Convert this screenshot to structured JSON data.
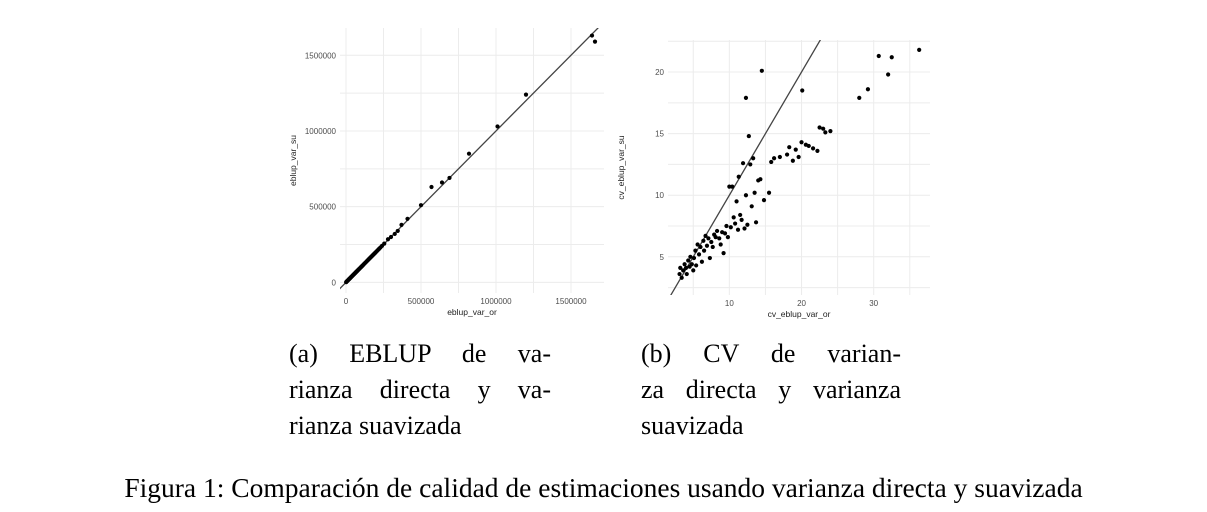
{
  "chart_data": [
    {
      "type": "scatter",
      "panel": "a",
      "title": "",
      "xlabel": "eblup_var_or",
      "ylabel": "eblup_var_su",
      "xlim": [
        -40000,
        1720000
      ],
      "ylim": [
        -70000,
        1680000
      ],
      "xticks": [
        0,
        500000,
        1000000,
        1500000
      ],
      "yticks": [
        0,
        500000,
        1000000,
        1500000
      ],
      "xtick_labels": [
        "0",
        "500000",
        "1000000",
        "1500000"
      ],
      "ytick_labels": [
        "0",
        "500000",
        "1000000",
        "1500000"
      ],
      "grid": true,
      "reference_line": {
        "type": "identity"
      },
      "points": [
        [
          1000,
          1500
        ],
        [
          3000,
          4000
        ],
        [
          5000,
          6000
        ],
        [
          8000,
          9000
        ],
        [
          10000,
          11000
        ],
        [
          12000,
          13000
        ],
        [
          15000,
          16000
        ],
        [
          18000,
          19000
        ],
        [
          20000,
          21000
        ],
        [
          22000,
          23000
        ],
        [
          25000,
          26000
        ],
        [
          28000,
          29000
        ],
        [
          30000,
          31000
        ],
        [
          33000,
          34000
        ],
        [
          36000,
          37000
        ],
        [
          40000,
          41000
        ],
        [
          43000,
          44000
        ],
        [
          46000,
          47000
        ],
        [
          50000,
          51000
        ],
        [
          53000,
          54000
        ],
        [
          56000,
          57000
        ],
        [
          60000,
          61000
        ],
        [
          63000,
          64000
        ],
        [
          66000,
          67000
        ],
        [
          70000,
          71000
        ],
        [
          73000,
          74000
        ],
        [
          76000,
          77000
        ],
        [
          80000,
          81000
        ],
        [
          85000,
          86000
        ],
        [
          90000,
          91000
        ],
        [
          95000,
          96000
        ],
        [
          100000,
          101000
        ],
        [
          105000,
          106000
        ],
        [
          110000,
          111000
        ],
        [
          115000,
          116000
        ],
        [
          120000,
          121000
        ],
        [
          125000,
          126000
        ],
        [
          130000,
          131000
        ],
        [
          135000,
          136000
        ],
        [
          140000,
          141000
        ],
        [
          145000,
          146000
        ],
        [
          150000,
          151000
        ],
        [
          155000,
          156000
        ],
        [
          160000,
          161000
        ],
        [
          165000,
          166000
        ],
        [
          170000,
          171000
        ],
        [
          175000,
          176000
        ],
        [
          180000,
          181000
        ],
        [
          185000,
          186000
        ],
        [
          190000,
          191000
        ],
        [
          195000,
          196000
        ],
        [
          200000,
          201000
        ],
        [
          208000,
          209000
        ],
        [
          215000,
          216000
        ],
        [
          222000,
          223000
        ],
        [
          230000,
          231000
        ],
        [
          240000,
          241000
        ],
        [
          255000,
          256000
        ],
        [
          280000,
          285000
        ],
        [
          300000,
          300000
        ],
        [
          325000,
          320000
        ],
        [
          345000,
          340000
        ],
        [
          370000,
          380000
        ],
        [
          410000,
          420000
        ],
        [
          500000,
          510000
        ],
        [
          570000,
          630000
        ],
        [
          640000,
          660000
        ],
        [
          690000,
          690000
        ],
        [
          820000,
          850000
        ],
        [
          1010000,
          1030000
        ],
        [
          1200000,
          1240000
        ],
        [
          1640000,
          1630000
        ],
        [
          1660000,
          1590000
        ]
      ]
    },
    {
      "type": "scatter",
      "panel": "b",
      "title": "",
      "xlabel": "cv_eblup_var_or",
      "ylabel": "cv_eblup_var_su",
      "xlim": [
        1.5,
        37.8
      ],
      "ylim": [
        1.9,
        22.6
      ],
      "xticks": [
        10,
        20,
        30
      ],
      "yticks": [
        5,
        10,
        15,
        20
      ],
      "xtick_labels": [
        "10",
        "20",
        "30"
      ],
      "ytick_labels": [
        "5",
        "10",
        "15",
        "20"
      ],
      "grid": true,
      "reference_line": {
        "type": "identity"
      },
      "points": [
        [
          3.1,
          3.6
        ],
        [
          3.2,
          4.1
        ],
        [
          3.4,
          3.3
        ],
        [
          3.6,
          3.9
        ],
        [
          3.8,
          4.4
        ],
        [
          4.0,
          4.1
        ],
        [
          4.1,
          3.6
        ],
        [
          4.3,
          4.7
        ],
        [
          4.5,
          4.2
        ],
        [
          4.6,
          5.0
        ],
        [
          4.8,
          4.4
        ],
        [
          5.0,
          3.9
        ],
        [
          5.1,
          4.9
        ],
        [
          5.3,
          5.5
        ],
        [
          5.4,
          4.3
        ],
        [
          5.6,
          6.0
        ],
        [
          5.8,
          5.2
        ],
        [
          6.0,
          5.8
        ],
        [
          6.2,
          4.6
        ],
        [
          6.4,
          6.3
        ],
        [
          6.5,
          5.5
        ],
        [
          6.7,
          6.7
        ],
        [
          6.9,
          5.9
        ],
        [
          7.1,
          6.5
        ],
        [
          7.3,
          4.9
        ],
        [
          7.5,
          6.2
        ],
        [
          7.7,
          5.8
        ],
        [
          7.9,
          6.8
        ],
        [
          8.1,
          6.6
        ],
        [
          8.3,
          7.1
        ],
        [
          8.6,
          6.5
        ],
        [
          8.8,
          6.0
        ],
        [
          9.0,
          7.0
        ],
        [
          9.2,
          5.3
        ],
        [
          9.4,
          6.9
        ],
        [
          9.6,
          7.5
        ],
        [
          9.8,
          6.6
        ],
        [
          10.0,
          10.7
        ],
        [
          10.2,
          7.4
        ],
        [
          10.4,
          10.7
        ],
        [
          10.6,
          8.2
        ],
        [
          10.8,
          7.7
        ],
        [
          11.0,
          9.5
        ],
        [
          11.2,
          7.2
        ],
        [
          11.3,
          11.5
        ],
        [
          11.5,
          8.4
        ],
        [
          11.7,
          8.0
        ],
        [
          11.9,
          12.6
        ],
        [
          12.1,
          7.3
        ],
        [
          12.3,
          10.0
        ],
        [
          12.5,
          7.6
        ],
        [
          12.7,
          14.8
        ],
        [
          12.9,
          12.5
        ],
        [
          13.1,
          9.1
        ],
        [
          13.3,
          13.0
        ],
        [
          13.5,
          10.2
        ],
        [
          13.7,
          7.8
        ],
        [
          14.0,
          11.2
        ],
        [
          14.3,
          11.3
        ],
        [
          14.8,
          9.6
        ],
        [
          15.5,
          10.2
        ],
        [
          15.8,
          12.7
        ],
        [
          16.2,
          13.0
        ],
        [
          17.0,
          13.1
        ],
        [
          18.0,
          13.3
        ],
        [
          18.3,
          13.9
        ],
        [
          18.8,
          12.8
        ],
        [
          19.2,
          13.7
        ],
        [
          19.6,
          13.1
        ],
        [
          20.0,
          14.3
        ],
        [
          20.6,
          14.1
        ],
        [
          21.0,
          14.0
        ],
        [
          21.6,
          13.8
        ],
        [
          22.2,
          13.6
        ],
        [
          22.5,
          15.5
        ],
        [
          23.0,
          15.4
        ],
        [
          23.3,
          15.1
        ],
        [
          24.0,
          15.2
        ],
        [
          12.3,
          17.9
        ],
        [
          14.5,
          20.1
        ],
        [
          20.1,
          18.5
        ],
        [
          28.0,
          17.9
        ],
        [
          29.2,
          18.6
        ],
        [
          30.7,
          21.3
        ],
        [
          32.0,
          19.8
        ],
        [
          32.5,
          21.2
        ],
        [
          36.3,
          21.8
        ]
      ]
    }
  ],
  "captions": {
    "sub_a": [
      "(a) EBLUP de va-",
      "rianza directa y va-",
      "rianza suavizada"
    ],
    "sub_b": [
      "(b) CV de varian-",
      "za directa y varianza",
      "suavizada"
    ],
    "figure": "Figura 1: Comparación de calidad de estimaciones usando varianza directa y suavizada"
  }
}
